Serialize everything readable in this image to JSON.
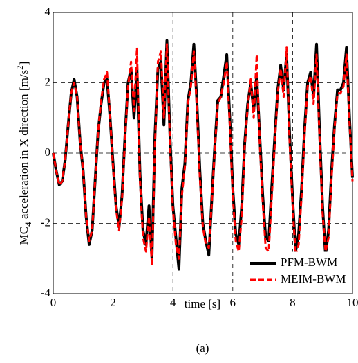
{
  "chart_data": {
    "type": "line",
    "xlabel": "time [s]",
    "ylabel": [
      "MC",
      "4",
      " acceleration in X direction [m/s",
      "2",
      "]"
    ],
    "caption": "(a)",
    "x": [
      0,
      0.1,
      0.2,
      0.3,
      0.4,
      0.5,
      0.6,
      0.7,
      0.8,
      0.9,
      1,
      1.1,
      1.2,
      1.3,
      1.4,
      1.5,
      1.6,
      1.7,
      1.8,
      1.9,
      2,
      2.1,
      2.2,
      2.3,
      2.4,
      2.5,
      2.6,
      2.7,
      2.8,
      2.9,
      3,
      3.1,
      3.2,
      3.3,
      3.4,
      3.5,
      3.6,
      3.7,
      3.8,
      3.9,
      4,
      4.1,
      4.2,
      4.3,
      4.4,
      4.5,
      4.6,
      4.7,
      4.8,
      4.9,
      5,
      5.1,
      5.2,
      5.3,
      5.4,
      5.5,
      5.6,
      5.7,
      5.8,
      5.9,
      6,
      6.1,
      6.2,
      6.3,
      6.4,
      6.5,
      6.6,
      6.7,
      6.8,
      6.9,
      7,
      7.1,
      7.2,
      7.3,
      7.4,
      7.5,
      7.6,
      7.7,
      7.8,
      7.9,
      8,
      8.1,
      8.2,
      8.3,
      8.4,
      8.5,
      8.6,
      8.7,
      8.8,
      8.9,
      9,
      9.1,
      9.2,
      9.3,
      9.4,
      9.5,
      9.6,
      9.7,
      9.8,
      9.9,
      10
    ],
    "series": [
      {
        "name": "PFM-BWM",
        "color": "#000000",
        "dash": "solid",
        "width": 4,
        "values": [
          0,
          -0.5,
          -0.9,
          -0.8,
          -0.2,
          0.8,
          1.7,
          2.1,
          1.6,
          0.3,
          -0.5,
          -1.8,
          -2.6,
          -2.2,
          -0.8,
          0.6,
          1.4,
          2.0,
          2.1,
          1.0,
          -0.3,
          -1.5,
          -2.1,
          -1.2,
          0.5,
          2.0,
          2.4,
          1.0,
          2.4,
          -0.6,
          -2.2,
          -2.6,
          -1.5,
          -3.0,
          0.5,
          2.4,
          2.6,
          0.8,
          3.2,
          0.5,
          -1.5,
          -2.4,
          -3.3,
          -1.0,
          -0.3,
          1.5,
          2.0,
          3.1,
          1.5,
          -0.5,
          -2.0,
          -2.5,
          -2.9,
          -1.3,
          0.2,
          1.5,
          1.6,
          2.2,
          2.8,
          1.0,
          -1.0,
          -2.3,
          -2.6,
          -1.5,
          0.3,
          1.4,
          2.0,
          1.2,
          2.2,
          0.5,
          -1.2,
          -2.4,
          -2.5,
          -1.0,
          0.4,
          1.8,
          2.5,
          1.8,
          2.8,
          0.5,
          -1.3,
          -2.8,
          -2.3,
          -1.0,
          0.7,
          2.0,
          2.3,
          1.6,
          3.1,
          0.6,
          -1.5,
          -2.9,
          -2.2,
          -0.5,
          0.8,
          1.8,
          1.8,
          2.0,
          3.0,
          1.0,
          -0.7
        ]
      },
      {
        "name": "MEIM-BWM",
        "color": "#ff0000",
        "dash": "dashed",
        "width": 3,
        "values": [
          0,
          -0.5,
          -0.9,
          -0.8,
          -0.2,
          0.8,
          1.7,
          2.0,
          1.6,
          0.3,
          -0.5,
          -1.8,
          -2.5,
          -2.2,
          -0.8,
          0.6,
          1.5,
          2.1,
          2.3,
          1.0,
          -0.4,
          -1.6,
          -2.2,
          -1.3,
          0.4,
          1.9,
          2.6,
          1.2,
          3.0,
          -0.8,
          -2.4,
          -2.8,
          -1.8,
          -3.2,
          0.2,
          2.6,
          2.9,
          1.0,
          3.1,
          0.3,
          -1.6,
          -2.6,
          -3.0,
          -1.2,
          -0.4,
          1.4,
          1.9,
          2.9,
          1.3,
          -0.7,
          -2.1,
          -2.6,
          -2.7,
          -1.4,
          0.1,
          1.4,
          1.6,
          2.0,
          2.6,
          0.8,
          -1.2,
          -2.5,
          -2.8,
          -1.8,
          0.2,
          1.3,
          2.1,
          1.0,
          2.8,
          0.3,
          -1.4,
          -2.7,
          -2.8,
          -1.3,
          0.2,
          1.7,
          2.4,
          1.6,
          3.0,
          0.3,
          -1.5,
          -2.9,
          -2.6,
          -1.2,
          0.5,
          1.9,
          2.2,
          1.4,
          2.8,
          0.4,
          -1.7,
          -2.8,
          -2.4,
          -0.7,
          0.7,
          1.7,
          1.7,
          1.9,
          2.8,
          0.9,
          -0.8
        ]
      }
    ],
    "xlim": [
      0,
      10
    ],
    "xticks": [
      0,
      2,
      4,
      6,
      8,
      10
    ],
    "ylim": [
      -4,
      4
    ],
    "yticks": [
      -4,
      -2,
      0,
      2,
      4
    ],
    "grid": true,
    "legend": "lower right"
  }
}
